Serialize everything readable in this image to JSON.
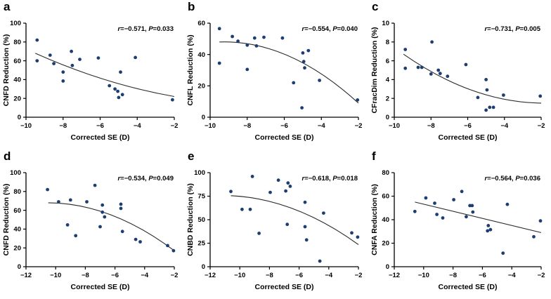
{
  "figure": {
    "background": "#ffffff",
    "point_color": "#1e3e72",
    "curve_color": "#2b2b2b",
    "axis_color": "#000000",
    "text_color": "#000000"
  },
  "chart_data": [
    {
      "type": "scatter",
      "panel_label": "a",
      "xlabel": "Corrected SE (D)",
      "ylabel": "CNFD Reduction (%)",
      "xlim": [
        -10,
        -2
      ],
      "ylim": [
        0,
        100
      ],
      "xticks": [
        -10,
        -8,
        -6,
        -4,
        -2
      ],
      "yticks": [
        0,
        20,
        40,
        60,
        80,
        100
      ],
      "annotation": {
        "r": "−0.571",
        "P": "0.033"
      },
      "points": [
        [
          -9.4,
          82
        ],
        [
          -9.4,
          60
        ],
        [
          -8.7,
          66
        ],
        [
          -8.5,
          57
        ],
        [
          -8.0,
          48
        ],
        [
          -8.0,
          38.5
        ],
        [
          -7.55,
          70
        ],
        [
          -7.5,
          55
        ],
        [
          -7.1,
          61.5
        ],
        [
          -6.1,
          63
        ],
        [
          -5.5,
          33.5
        ],
        [
          -5.2,
          30
        ],
        [
          -5.05,
          27.5
        ],
        [
          -5.0,
          21
        ],
        [
          -4.8,
          24
        ],
        [
          -4.9,
          48
        ],
        [
          -4.1,
          63.5
        ],
        [
          -2.1,
          18.5
        ]
      ],
      "trend": {
        "start": [
          -9.5,
          68
        ],
        "mid": [
          -5.75,
          40
        ],
        "end": [
          -2,
          22
        ]
      }
    },
    {
      "type": "scatter",
      "panel_label": "b",
      "xlabel": "Corrected SE (D)",
      "ylabel": "CNFL Reduction (%)",
      "xlim": [
        -10,
        -2
      ],
      "ylim": [
        0,
        60
      ],
      "xticks": [
        -10,
        -8,
        -6,
        -4,
        -2
      ],
      "yticks": [
        0,
        20,
        40,
        60
      ],
      "annotation": {
        "r": "−0.554",
        "P": "0.040"
      },
      "points": [
        [
          -9.5,
          56.5
        ],
        [
          -9.5,
          34.5
        ],
        [
          -8.8,
          51.5
        ],
        [
          -8.5,
          48.5
        ],
        [
          -8.0,
          46
        ],
        [
          -8.0,
          30.5
        ],
        [
          -7.6,
          50.5
        ],
        [
          -7.5,
          45.5
        ],
        [
          -7.1,
          51
        ],
        [
          -6.1,
          50.5
        ],
        [
          -5.5,
          22
        ],
        [
          -5.0,
          41
        ],
        [
          -4.95,
          35.5
        ],
        [
          -4.9,
          31.5
        ],
        [
          -5.05,
          6
        ],
        [
          -4.7,
          42.5
        ],
        [
          -4.1,
          23.5
        ],
        [
          -2.05,
          11
        ]
      ],
      "trend": {
        "start": [
          -9.5,
          48
        ],
        "mid": [
          -5.75,
          39
        ],
        "end": [
          -2,
          9
        ]
      }
    },
    {
      "type": "scatter",
      "panel_label": "c",
      "xlabel": "Corrected SE (D)",
      "ylabel": "CFracDim Reduction (%)",
      "xlim": [
        -10,
        -2
      ],
      "ylim": [
        0,
        10
      ],
      "xticks": [
        -10,
        -8,
        -6,
        -4,
        -2
      ],
      "yticks": [
        0,
        2,
        4,
        6,
        8,
        10
      ],
      "annotation": {
        "r": "−0.731",
        "P": "0.005"
      },
      "points": [
        [
          -9.4,
          7.2
        ],
        [
          -9.4,
          5.2
        ],
        [
          -8.7,
          5.3
        ],
        [
          -8.5,
          5.3
        ],
        [
          -8.0,
          4.6
        ],
        [
          -7.95,
          8.0
        ],
        [
          -7.6,
          5.0
        ],
        [
          -7.5,
          4.65
        ],
        [
          -7.1,
          4.35
        ],
        [
          -6.1,
          5.6
        ],
        [
          -5.45,
          2.1
        ],
        [
          -5.0,
          4.0
        ],
        [
          -4.95,
          2.9
        ],
        [
          -5.0,
          0.75
        ],
        [
          -4.8,
          1.05
        ],
        [
          -4.6,
          1.05
        ],
        [
          -4.05,
          2.35
        ],
        [
          -2.05,
          2.25
        ]
      ],
      "trend": {
        "start": [
          -9.5,
          6.7
        ],
        "mid": [
          -5.75,
          2.85
        ],
        "end": [
          -2,
          1.5
        ]
      }
    },
    {
      "type": "scatter",
      "panel_label": "d",
      "xlabel": "Corrected SE (D)",
      "ylabel": "CNFD Reduction (%)",
      "xlim": [
        -12,
        -2
      ],
      "ylim": [
        0,
        100
      ],
      "xticks": [
        -12,
        -10,
        -8,
        -6,
        -4,
        -2
      ],
      "yticks": [
        0,
        20,
        40,
        60,
        80,
        100
      ],
      "annotation": {
        "r": "−0.534",
        "P": "0.049"
      },
      "points": [
        [
          -10.55,
          82
        ],
        [
          -9.8,
          69
        ],
        [
          -9.2,
          44.5
        ],
        [
          -9.0,
          71
        ],
        [
          -8.65,
          33
        ],
        [
          -7.9,
          69
        ],
        [
          -7.35,
          86.5
        ],
        [
          -7.0,
          42.5
        ],
        [
          -6.85,
          65.5
        ],
        [
          -6.85,
          58
        ],
        [
          -6.7,
          53
        ],
        [
          -5.6,
          66.5
        ],
        [
          -5.6,
          62
        ],
        [
          -5.5,
          37.5
        ],
        [
          -4.6,
          29
        ],
        [
          -4.3,
          26.5
        ],
        [
          -2.45,
          22.5
        ],
        [
          -2.05,
          17
        ]
      ],
      "trend": {
        "start": [
          -10.5,
          68
        ],
        "mid": [
          -6.25,
          55
        ],
        "end": [
          -2,
          17
        ]
      }
    },
    {
      "type": "scatter",
      "panel_label": "e",
      "xlabel": "Corrected SE (D)",
      "ylabel": "CNBD Reduction (%)",
      "xlim": [
        -12,
        -2
      ],
      "ylim": [
        0,
        100
      ],
      "xticks": [
        -12,
        -10,
        -8,
        -6,
        -4,
        -2
      ],
      "yticks": [
        0,
        25,
        50,
        75,
        100
      ],
      "annotation": {
        "r": "−0.618",
        "P": "0.018"
      },
      "points": [
        [
          -10.6,
          80
        ],
        [
          -9.85,
          61
        ],
        [
          -9.3,
          61
        ],
        [
          -9.15,
          96
        ],
        [
          -8.7,
          35.5
        ],
        [
          -7.95,
          79
        ],
        [
          -7.4,
          92
        ],
        [
          -6.9,
          80.5
        ],
        [
          -6.75,
          89
        ],
        [
          -6.6,
          85.5
        ],
        [
          -6.8,
          45
        ],
        [
          -5.6,
          68.5
        ],
        [
          -5.6,
          42.5
        ],
        [
          -5.5,
          28.5
        ],
        [
          -4.6,
          6
        ],
        [
          -4.35,
          57
        ],
        [
          -2.45,
          36
        ],
        [
          -2.05,
          31.5
        ]
      ],
      "trend": {
        "start": [
          -10.6,
          75.5
        ],
        "mid": [
          -6.3,
          61
        ],
        "end": [
          -2,
          23.5
        ]
      }
    },
    {
      "type": "scatter",
      "panel_label": "f",
      "xlabel": "Corrected SE (D)",
      "ylabel": "CNFA Reduction (%)",
      "xlim": [
        -12,
        -2
      ],
      "ylim": [
        0,
        80
      ],
      "xticks": [
        -12,
        -10,
        -8,
        -6,
        -4,
        -2
      ],
      "yticks": [
        0,
        20,
        40,
        60,
        80
      ],
      "annotation": {
        "r": "−0.564",
        "P": "0.036"
      },
      "points": [
        [
          -10.6,
          47
        ],
        [
          -9.85,
          58.5
        ],
        [
          -9.25,
          54
        ],
        [
          -9.1,
          44.5
        ],
        [
          -8.7,
          41.5
        ],
        [
          -7.95,
          57
        ],
        [
          -7.4,
          64
        ],
        [
          -7.1,
          42.5
        ],
        [
          -6.85,
          52
        ],
        [
          -6.7,
          52
        ],
        [
          -6.65,
          46.5
        ],
        [
          -5.6,
          35
        ],
        [
          -5.65,
          30.5
        ],
        [
          -5.45,
          31.5
        ],
        [
          -4.6,
          11.5
        ],
        [
          -4.3,
          53
        ],
        [
          -2.5,
          25.5
        ],
        [
          -2.05,
          39
        ]
      ],
      "trend": {
        "start": [
          -10.6,
          55
        ],
        "mid": [
          -6.3,
          42
        ],
        "end": [
          -2,
          29
        ]
      }
    }
  ]
}
